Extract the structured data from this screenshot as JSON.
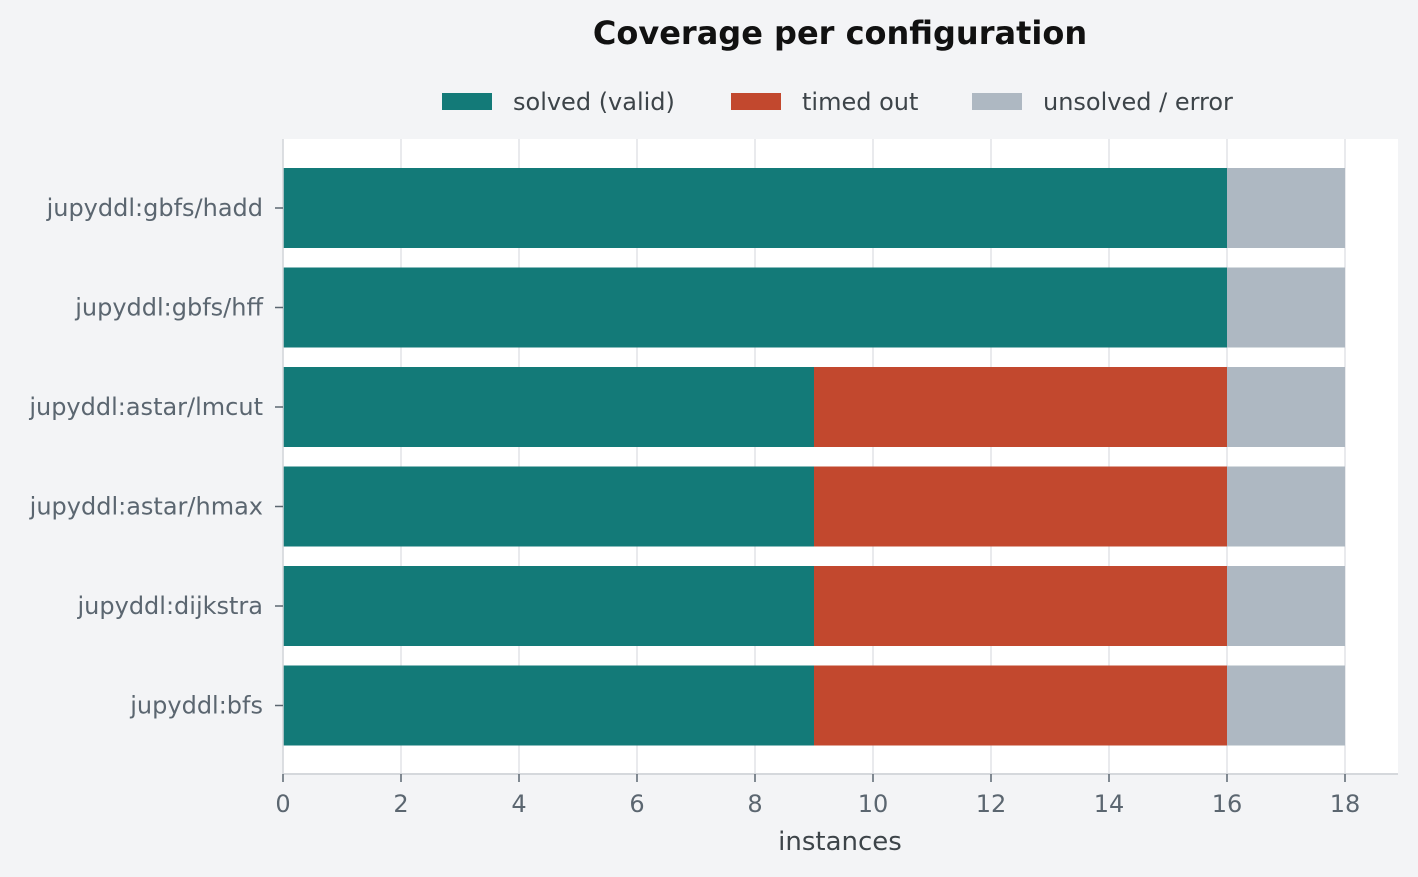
{
  "chart_data": {
    "type": "bar",
    "orientation": "horizontal",
    "stacked": true,
    "title": "Coverage per configuration",
    "xlabel": "instances",
    "ylabel": "",
    "xlim": [
      0,
      18.9
    ],
    "xticks": [
      0,
      2,
      4,
      6,
      8,
      10,
      12,
      14,
      16,
      18
    ],
    "grid": "vertical",
    "legend_position": "top-center",
    "categories": [
      "jupyddl:gbfs/hadd",
      "jupyddl:gbfs/hff",
      "jupyddl:astar/lmcut",
      "jupyddl:astar/hmax",
      "jupyddl:dijkstra",
      "jupyddl:bfs"
    ],
    "series": [
      {
        "name": "solved (valid)",
        "color": "#137a78",
        "values": [
          16,
          16,
          9,
          9,
          9,
          9
        ]
      },
      {
        "name": "timed out",
        "color": "#c2482e",
        "values": [
          0,
          0,
          7,
          7,
          7,
          7
        ]
      },
      {
        "name": "unsolved / error",
        "color": "#aeb8c2",
        "values": [
          2,
          2,
          2,
          2,
          2,
          2
        ]
      }
    ]
  }
}
